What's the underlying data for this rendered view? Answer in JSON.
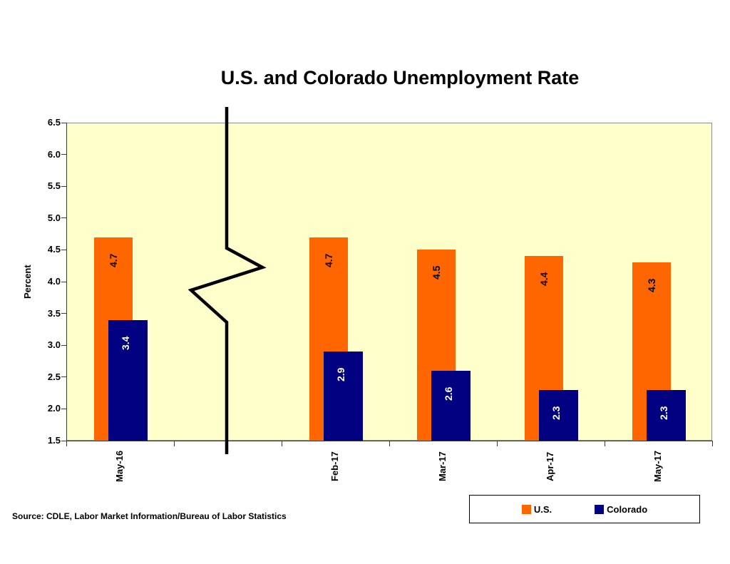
{
  "title": "U.S. and Colorado Unemployment Rate",
  "y_axis_title": "Percent",
  "source_note": "Source: CDLE, Labor Market Information/Bureau of Labor Statistics",
  "legend": {
    "items": [
      {
        "label": "U.S.",
        "color": "#FF6600"
      },
      {
        "label": "Colorado",
        "color": "#000080"
      }
    ]
  },
  "chart_data": {
    "type": "bar",
    "title": "U.S. and Colorado Unemployment Rate",
    "categories": [
      "May-16",
      "Feb-17",
      "Mar-17",
      "Apr-17",
      "May-17"
    ],
    "series": [
      {
        "name": "U.S.",
        "color": "#FF6600",
        "label_color": "#000000",
        "values": [
          4.7,
          4.7,
          4.5,
          4.4,
          4.3
        ]
      },
      {
        "name": "Colorado",
        "color": "#000080",
        "label_color": "#FFFFFF",
        "values": [
          3.4,
          2.9,
          2.6,
          2.3,
          2.3
        ]
      }
    ],
    "ylabel": "Percent",
    "ylim": [
      1.5,
      6.5
    ],
    "ytick_step": 0.5,
    "grid": false,
    "plot_background": "#FFFFCC",
    "axis_break": {
      "after_category": "May-16",
      "note": "broken time axis between May-16 and Feb-17"
    },
    "legend_position": "bottom-right",
    "data_labels": "inside end, rotated vertical"
  }
}
